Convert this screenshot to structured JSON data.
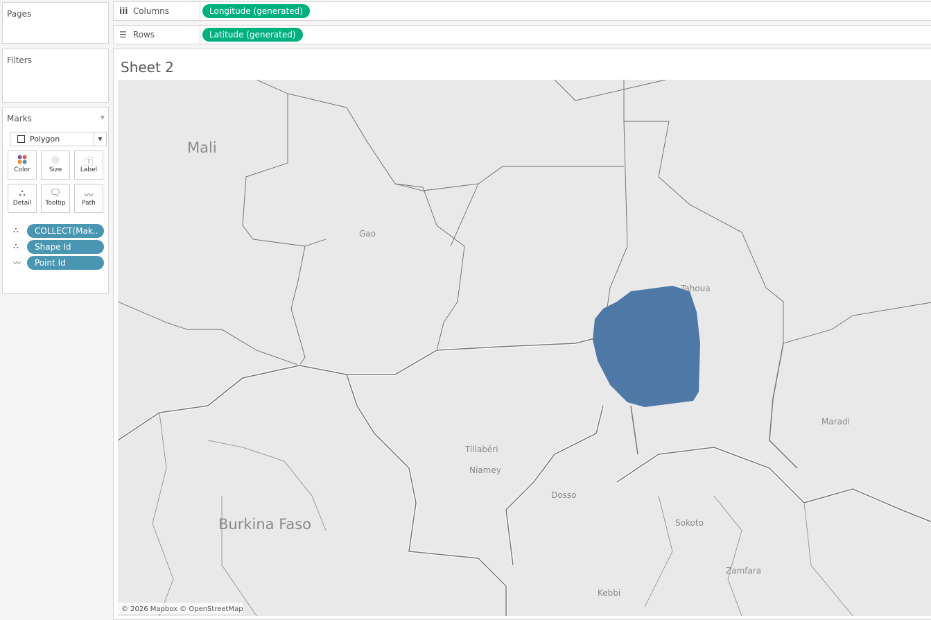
{
  "panels": {
    "pages": "Pages",
    "filters": "Filters",
    "marks": "Marks"
  },
  "marks": {
    "type": "Polygon",
    "buttons": [
      {
        "label": "Color",
        "icon": "color-dots-icon"
      },
      {
        "label": "Size",
        "icon": "size-circles-icon"
      },
      {
        "label": "Label",
        "icon": "label-t-icon"
      },
      {
        "label": "Detail",
        "icon": "detail-hierarchy-icon"
      },
      {
        "label": "Tooltip",
        "icon": "tooltip-bubble-icon"
      },
      {
        "label": "Path",
        "icon": "path-line-icon"
      }
    ],
    "fields": [
      {
        "label": "COLLECT(Mak..",
        "icon": "detail-hierarchy-icon"
      },
      {
        "label": "Shape Id",
        "icon": "detail-hierarchy-icon"
      },
      {
        "label": "Point Id",
        "icon": "path-line-icon"
      }
    ]
  },
  "shelves": {
    "columns_label": "Columns",
    "columns_pill": "Longitude (generated)",
    "rows_label": "Rows",
    "rows_pill": "Latitude (generated)"
  },
  "sheet": {
    "title": "Sheet 2"
  },
  "map": {
    "attribution": "© 2026 Mapbox © OpenStreetMap",
    "polygon_color": "#4e79a7",
    "pill_color": "#00b180",
    "field_color": "#4996b2",
    "labels": {
      "mali": "Mali",
      "burkina": "Burkina Faso",
      "gao": "Gao",
      "tahoua": "Tahoua",
      "maradi": "Maradi",
      "tillaberi": "Tillabéri",
      "niamey": "Niamey",
      "dosso": "Dosso",
      "sokoto": "Sokoto",
      "zamfara": "Zamfara",
      "kebbi": "Kebbi"
    }
  }
}
